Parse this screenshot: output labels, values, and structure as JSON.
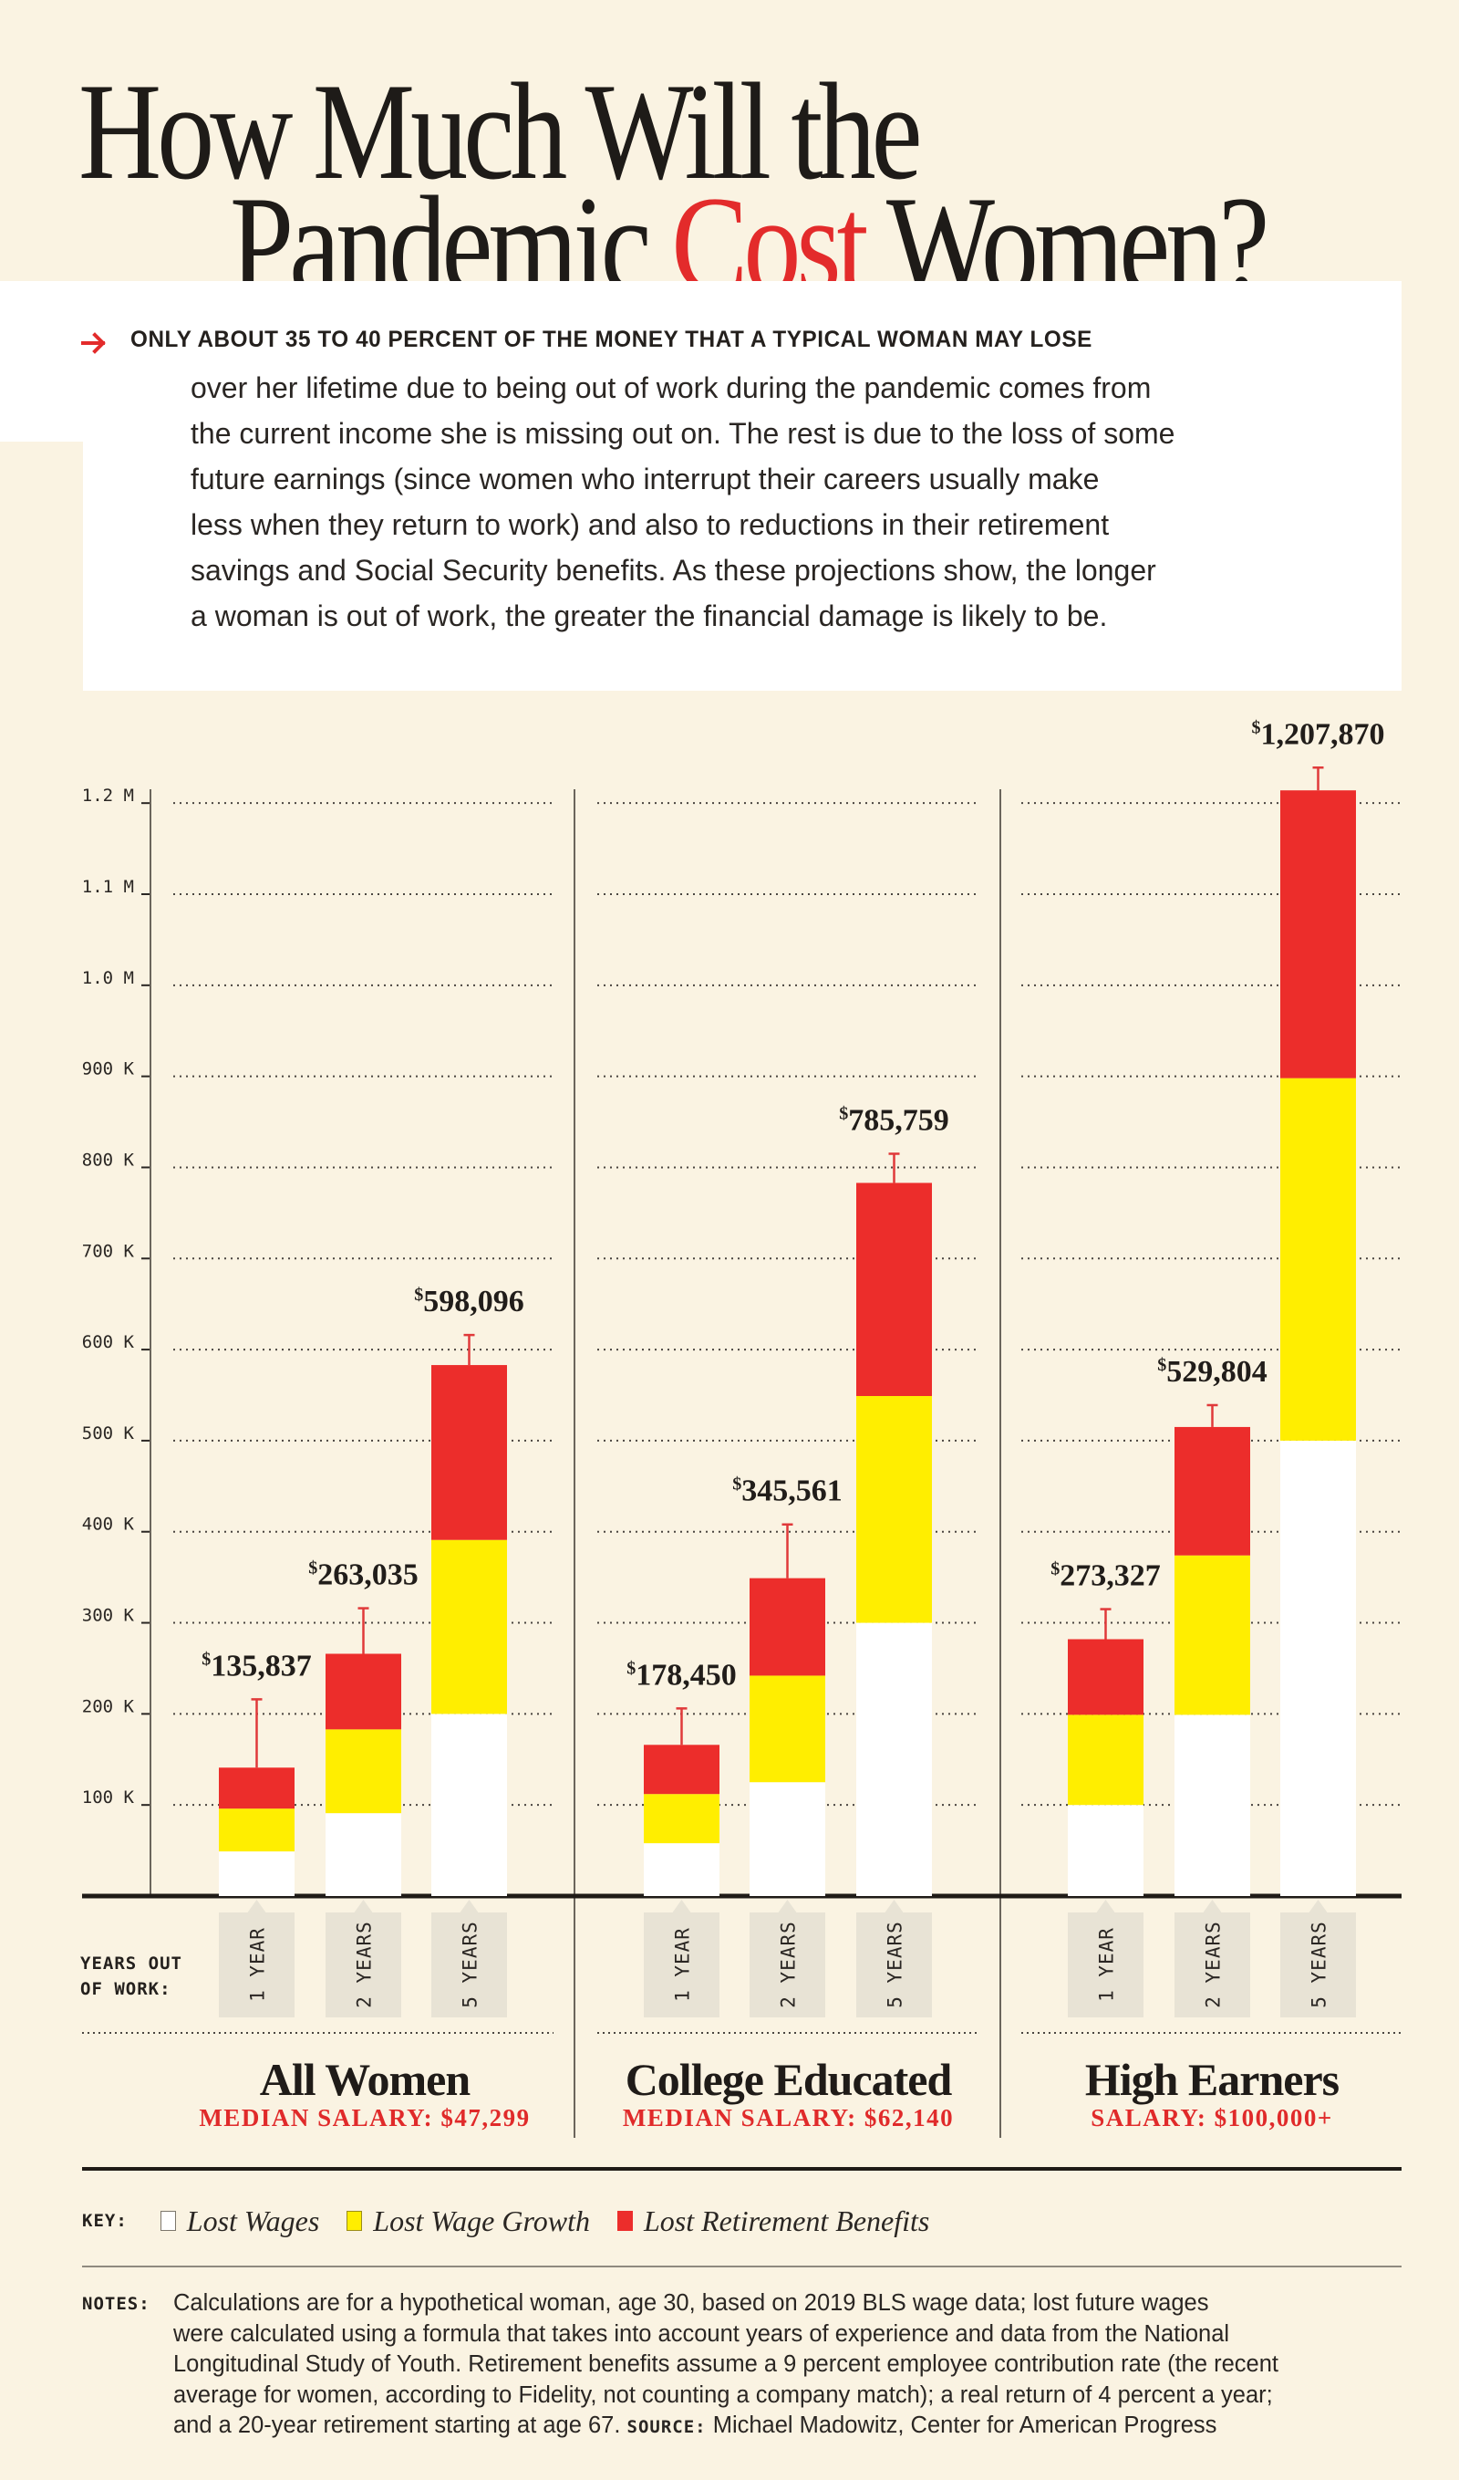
{
  "title": {
    "line1": "How Much Will the",
    "line2_before": "Pandemic ",
    "line2_accent": "Cost",
    "line2_after": " Women?"
  },
  "intro": {
    "arrow_icon": "arrow-right-icon",
    "lead": "ONLY ABOUT 35 TO 40 PERCENT OF THE MONEY THAT A TYPICAL WOMAN MAY LOSE",
    "lines": [
      "over her lifetime due to being out of work during the pandemic comes from",
      "the current income she is missing out on. The rest is due to the loss of some",
      "future earnings (since women who interrupt their careers usually make",
      "less when they return to work) and also to reductions in their retirement",
      "savings and Social Security benefits. As these projections show, the longer",
      "a woman is out of work, the greater the financial damage is likely to be."
    ]
  },
  "colors": {
    "background": "#faf3e2",
    "accent_red": "#e32b2b",
    "lost_wages": "#ffffff",
    "lost_wage_growth": "#ffee00",
    "lost_retirement_benefits": "#ec2d2b",
    "tab": "#e8e3d5"
  },
  "x_axis_caption": [
    "YEARS OUT",
    "OF WORK:"
  ],
  "chart_data": {
    "type": "bar",
    "stacked": true,
    "title": "How Much Will the Pandemic Cost Women?",
    "xlabel": "YEARS OUT OF WORK:",
    "ylabel": "",
    "ylim": [
      0,
      1200000
    ],
    "yticks": [
      100000,
      200000,
      300000,
      400000,
      500000,
      600000,
      700000,
      800000,
      900000,
      1000000,
      1100000,
      1200000
    ],
    "ytick_labels": [
      "100 K",
      "200 K",
      "300 K",
      "400 K",
      "500 K",
      "600 K",
      "700 K",
      "800 K",
      "900 K",
      "1.0 M",
      "1.1 M",
      "1.2 M"
    ],
    "grid": true,
    "categories": [
      "1 YEAR",
      "2 YEARS",
      "5 YEARS"
    ],
    "legend": {
      "title": "KEY:",
      "placement": "bottom",
      "entries": [
        "Lost Wages",
        "Lost Wage Growth",
        "Lost Retirement Benefits"
      ]
    },
    "groups": [
      {
        "name": "All Women",
        "subtitle": "MEDIAN SALARY: $47,299",
        "totals_label": [
          "135,837",
          "263,035",
          "598,096"
        ],
        "totals": [
          135837,
          263035,
          598096
        ],
        "series": [
          {
            "name": "Lost Wages",
            "values": [
              49000,
              91000,
              200000
            ]
          },
          {
            "name": "Lost Wage Growth",
            "values": [
              47000,
              92000,
              191000
            ]
          },
          {
            "name": "Lost Retirement Benefits",
            "values": [
              45000,
              83000,
              192000
            ]
          }
        ],
        "whisker_top": [
          216000,
          316000,
          616000
        ]
      },
      {
        "name": "College Educated",
        "subtitle": "MEDIAN SALARY: $62,140",
        "totals_label": [
          "178,450",
          "345,561",
          "785,759"
        ],
        "totals": [
          178450,
          345561,
          785759
        ],
        "series": [
          {
            "name": "Lost Wages",
            "values": [
              58000,
              125000,
              300000
            ]
          },
          {
            "name": "Lost Wage Growth",
            "values": [
              54000,
              117000,
              249000
            ]
          },
          {
            "name": "Lost Retirement Benefits",
            "values": [
              54000,
              107000,
              234000
            ]
          }
        ],
        "whisker_top": [
          206000,
          408000,
          815000
        ]
      },
      {
        "name": "High Earners",
        "subtitle": "SALARY: $100,000+",
        "totals_label": [
          "273,327",
          "529,804",
          "1,207,870"
        ],
        "totals": [
          273327,
          529804,
          1207870
        ],
        "series": [
          {
            "name": "Lost Wages",
            "values": [
              100000,
              199000,
              500000
            ]
          },
          {
            "name": "Lost Wage Growth",
            "values": [
              99000,
              175000,
              398000
            ]
          },
          {
            "name": "Lost Retirement Benefits",
            "values": [
              83000,
              141000,
              316000
            ]
          }
        ],
        "whisker_top": [
          315000,
          539000,
          1239000
        ]
      }
    ]
  },
  "key": {
    "title": "KEY:",
    "items": [
      "Lost Wages",
      "Lost Wage Growth",
      "Lost Retirement Benefits"
    ]
  },
  "notes": {
    "label": "NOTES:",
    "lines": [
      "Calculations are for a hypothetical woman, age 30, based on 2019 BLS wage data; lost future wages",
      "were calculated using a formula that takes into account years of experience and data from the National",
      "Longitudinal Study of Youth. Retirement benefits assume a 9 percent employee contribution rate (the recent",
      "average for women, according to Fidelity, not counting a company match); a real return of 4 percent a year;"
    ],
    "last_line_before": "and a 20-year retirement starting at age 67. ",
    "source_label": "SOURCE:",
    "source_text": " Michael Madowitz, Center for American Progress"
  }
}
